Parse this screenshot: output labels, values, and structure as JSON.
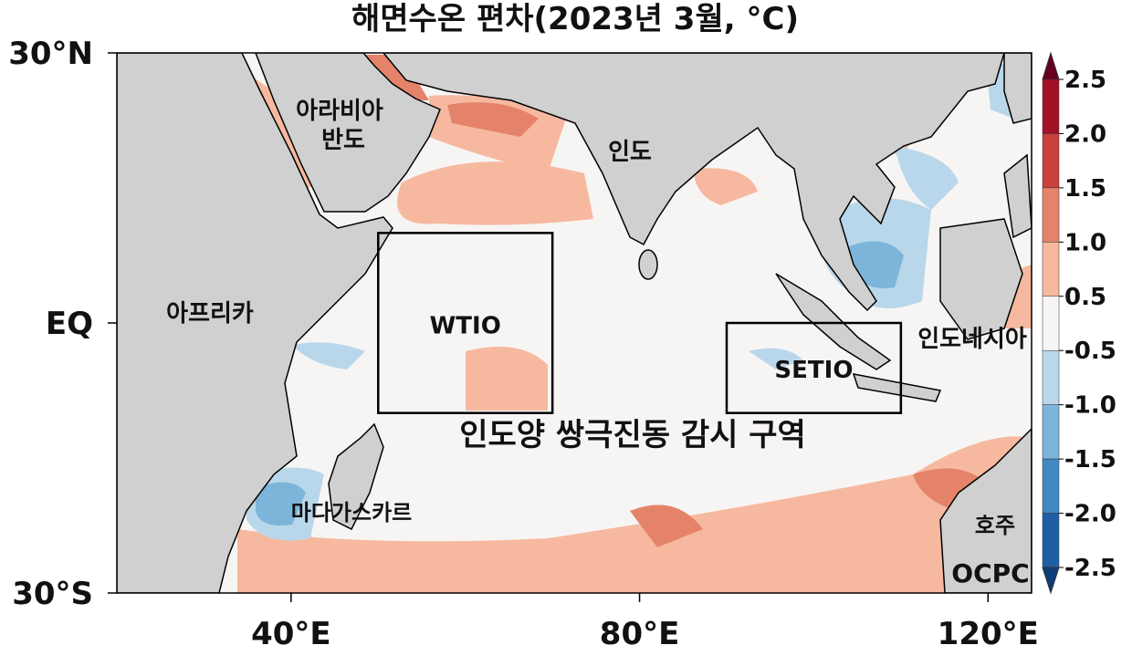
{
  "title": "해면수온 편차(2023년 3월, °C)",
  "map": {
    "lon_range": [
      20,
      125
    ],
    "lat_range": [
      -30,
      30
    ],
    "lat_ticks": [
      {
        "value": 30,
        "label": "30°N"
      },
      {
        "value": 0,
        "label": "EQ"
      },
      {
        "value": -30,
        "label": "30°S"
      }
    ],
    "lon_ticks": [
      {
        "value": 40,
        "label": "40°E"
      },
      {
        "value": 80,
        "label": "80°E"
      },
      {
        "value": 120,
        "label": "120°E"
      }
    ],
    "regions": [
      [
        "아라비아",
        "반도"
      ],
      [
        "인도"
      ],
      [
        "아프리카"
      ],
      [
        "인도네시아"
      ],
      [
        "마다가스카르"
      ],
      [
        "호주"
      ]
    ],
    "boxes": [
      {
        "name": "WTIO",
        "lon": [
          50,
          70
        ],
        "lat": [
          -10,
          10
        ]
      },
      {
        "name": "SETIO",
        "lon": [
          90,
          110
        ],
        "lat": [
          -10,
          0
        ]
      }
    ],
    "box_caption": "인도양 쌍극진동 감시 구역",
    "logo": "OCPC"
  },
  "colorbar": {
    "ticks": [
      2.5,
      {
        "value": 2,
        "label": "2.0"
      },
      1.5,
      {
        "value": 1,
        "label": "1.0"
      },
      0.5,
      -0.5,
      {
        "value": -1,
        "label": "-1.0"
      },
      -1.5,
      {
        "value": -2,
        "label": "-2.0"
      },
      -2.5
    ],
    "colors": [
      "#67001f",
      "#a11228",
      "#c9403c",
      "#e5836a",
      "#f6b9a0",
      "#f7f5f4",
      "#b9d7ea",
      "#7cb5d9",
      "#4289c2",
      "#1f5fa3",
      "#0c3d77"
    ]
  }
}
